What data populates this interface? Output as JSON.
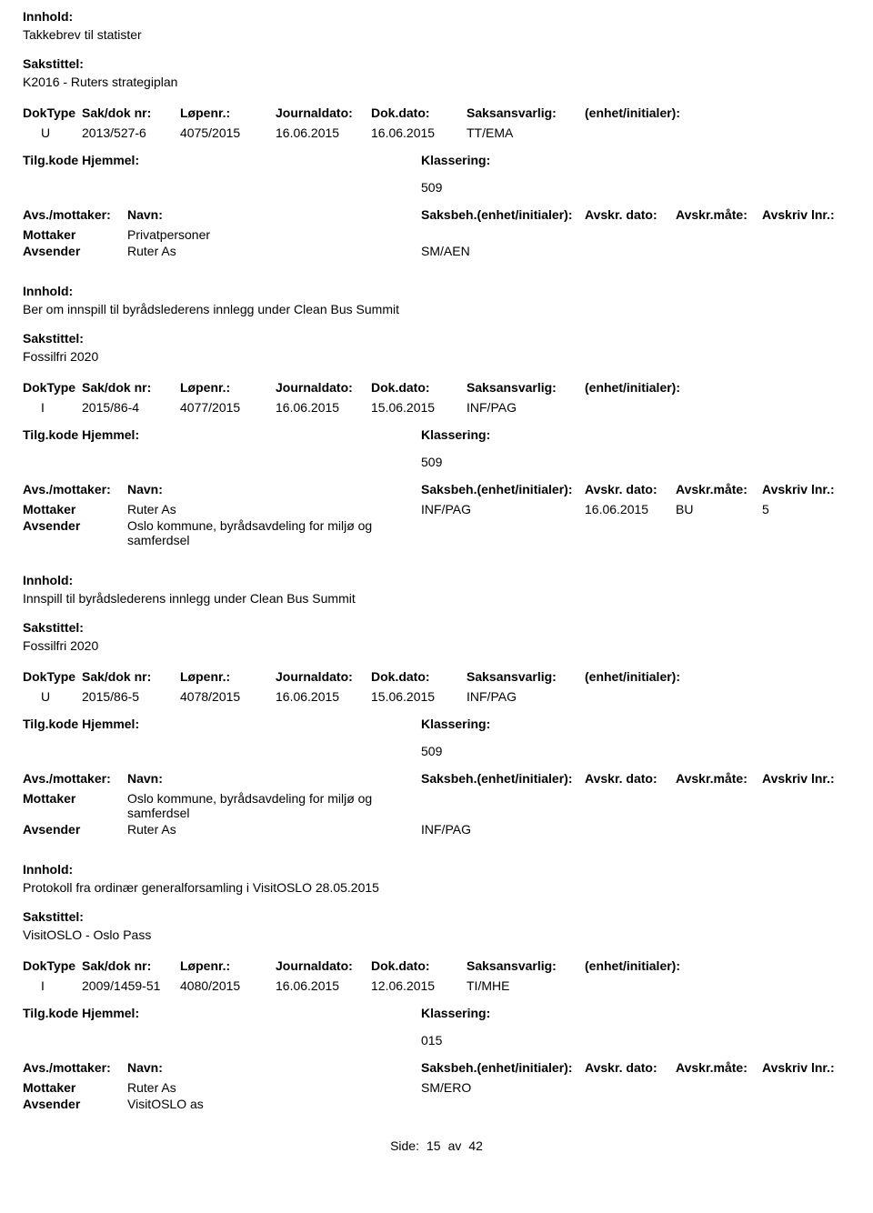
{
  "labels": {
    "innhold": "Innhold:",
    "sakstittel": "Sakstittel:",
    "doktype": "DokType",
    "sakdok": "Sak/dok nr:",
    "lopenr": "Løpenr.:",
    "journaldato": "Journaldato:",
    "dokdato": "Dok.dato:",
    "saksansvarlig": "Saksansvarlig:",
    "enhet": "(enhet/initialer):",
    "tilgkode": "Tilg.kode",
    "hjemmel": "Hjemmel:",
    "klassering": "Klassering:",
    "avsmottaker": "Avs./mottaker:",
    "navn": "Navn:",
    "saksbeh_enhet": "Saksbeh.(enhet/initialer):",
    "avskr_dato": "Avskr. dato:",
    "avskr_mate": "Avskr.måte:",
    "avskriv_lnr": "Avskriv lnr.:",
    "mottaker": "Mottaker",
    "avsender": "Avsender",
    "side": "Side:",
    "av": "av"
  },
  "footer": {
    "page": "15",
    "total": "42"
  },
  "records": [
    {
      "innhold": "Takkebrev til statister",
      "sakstittel": "K2016 - Ruters strategiplan",
      "doktype": "U",
      "sakdok": "2013/527-6",
      "lopenr": "4075/2015",
      "journaldato": "16.06.2015",
      "dokdato": "16.06.2015",
      "saksansvarlig": "TT/EMA",
      "klassering": "509",
      "parties": [
        {
          "role": "Mottaker",
          "navn": "Privatpersoner",
          "saksbeh": "",
          "avskrdato": "",
          "avskrmate": "",
          "avskrlnr": ""
        },
        {
          "role": "Avsender",
          "navn": "Ruter As",
          "saksbeh": "SM/AEN",
          "avskrdato": "",
          "avskrmate": "",
          "avskrlnr": ""
        }
      ]
    },
    {
      "innhold": "Ber om innspill til byrådslederens innlegg under Clean Bus Summit",
      "sakstittel": "Fossilfri 2020",
      "doktype": "I",
      "sakdok": "2015/86-4",
      "lopenr": "4077/2015",
      "journaldato": "16.06.2015",
      "dokdato": "15.06.2015",
      "saksansvarlig": "INF/PAG",
      "klassering": "509",
      "parties": [
        {
          "role": "Mottaker",
          "navn": "Ruter As",
          "saksbeh": "INF/PAG",
          "avskrdato": "16.06.2015",
          "avskrmate": "BU",
          "avskrlnr": "5"
        },
        {
          "role": "Avsender",
          "navn": "Oslo kommune, byrådsavdeling for miljø og samferdsel",
          "saksbeh": "",
          "avskrdato": "",
          "avskrmate": "",
          "avskrlnr": ""
        }
      ]
    },
    {
      "innhold": "Innspill til byrådslederens innlegg under Clean Bus Summit",
      "sakstittel": "Fossilfri 2020",
      "doktype": "U",
      "sakdok": "2015/86-5",
      "lopenr": "4078/2015",
      "journaldato": "16.06.2015",
      "dokdato": "15.06.2015",
      "saksansvarlig": "INF/PAG",
      "klassering": "509",
      "parties": [
        {
          "role": "Mottaker",
          "navn": "Oslo kommune, byrådsavdeling for miljø og samferdsel",
          "saksbeh": "",
          "avskrdato": "",
          "avskrmate": "",
          "avskrlnr": ""
        },
        {
          "role": "Avsender",
          "navn": "Ruter As",
          "saksbeh": "INF/PAG",
          "avskrdato": "",
          "avskrmate": "",
          "avskrlnr": ""
        }
      ]
    },
    {
      "innhold": "Protokoll fra ordinær generalforsamling i VisitOSLO 28.05.2015",
      "sakstittel": "VisitOSLO - Oslo Pass",
      "doktype": "I",
      "sakdok": "2009/1459-51",
      "lopenr": "4080/2015",
      "journaldato": "16.06.2015",
      "dokdato": "12.06.2015",
      "saksansvarlig": "TI/MHE",
      "klassering": "015",
      "parties": [
        {
          "role": "Mottaker",
          "navn": "Ruter As",
          "saksbeh": "SM/ERO",
          "avskrdato": "",
          "avskrmate": "",
          "avskrlnr": ""
        },
        {
          "role": "Avsender",
          "navn": "VisitOSLO as",
          "saksbeh": "",
          "avskrdato": "",
          "avskrmate": "",
          "avskrlnr": ""
        }
      ]
    }
  ]
}
